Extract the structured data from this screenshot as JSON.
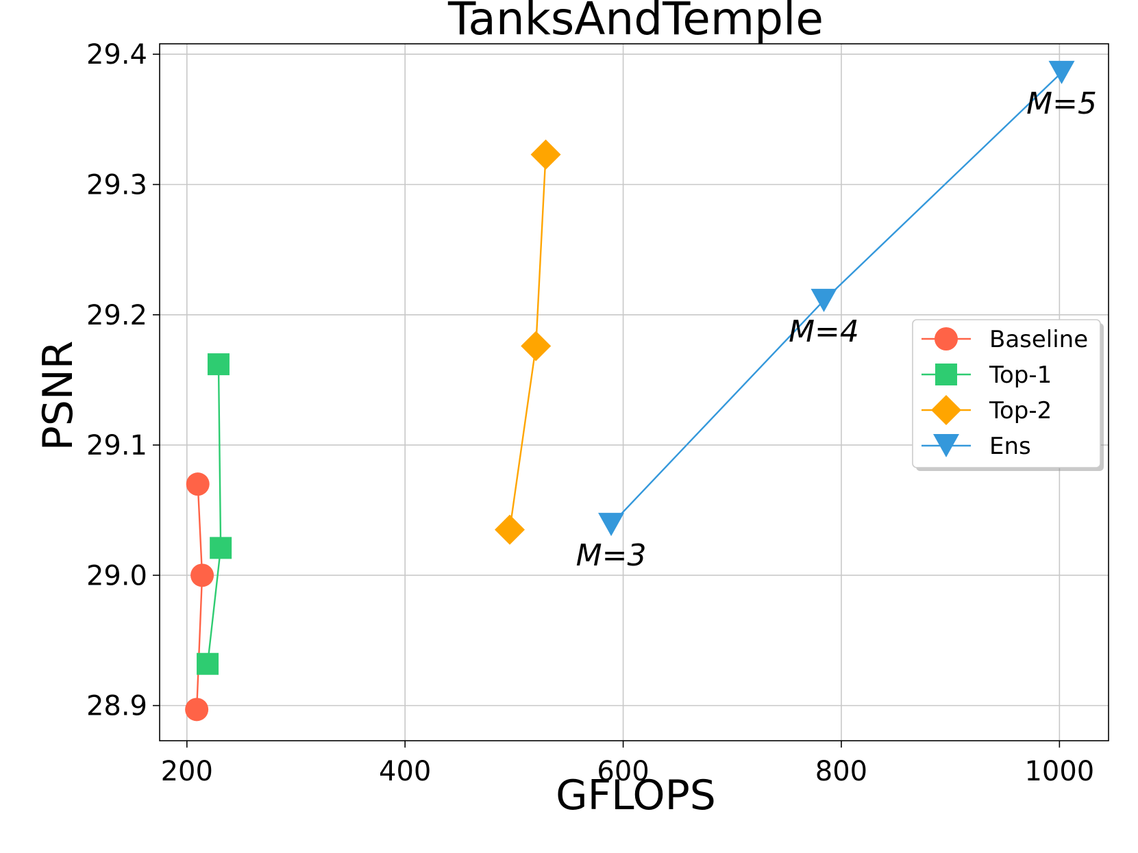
{
  "chart_data": {
    "type": "line",
    "title": "TanksAndTemple",
    "xlabel": "GFLOPS",
    "ylabel": "PSNR",
    "xlim": [
      175,
      1045
    ],
    "ylim": [
      28.873,
      29.408
    ],
    "xticks": [
      200,
      400,
      600,
      800,
      1000
    ],
    "yticks": [
      28.9,
      29.0,
      29.1,
      29.2,
      29.3,
      29.4
    ],
    "xtick_labels": [
      "200",
      "400",
      "600",
      "800",
      "1000"
    ],
    "ytick_labels": [
      "28.9",
      "29.0",
      "29.1",
      "29.2",
      "29.3",
      "29.4"
    ],
    "grid": true,
    "legend_position": "center-right",
    "series": [
      {
        "name": "Baseline",
        "color": "#ff6347",
        "marker": "circle",
        "x": [
          209,
          214,
          210
        ],
        "y": [
          28.897,
          29.0,
          29.07
        ]
      },
      {
        "name": "Top-1",
        "color": "#2ecc71",
        "marker": "square",
        "x": [
          219,
          231,
          229
        ],
        "y": [
          28.932,
          29.021,
          29.162
        ]
      },
      {
        "name": "Top-2",
        "color": "#ffa500",
        "marker": "diamond",
        "x": [
          496,
          520,
          529
        ],
        "y": [
          29.035,
          29.176,
          29.323
        ]
      },
      {
        "name": "Ens",
        "color": "#3498db",
        "marker": "triangle-down",
        "x": [
          589,
          784,
          1002
        ],
        "y": [
          29.039,
          29.211,
          29.386
        ]
      }
    ],
    "annotations": [
      {
        "text": "M=3",
        "x": 589,
        "y": 29.039
      },
      {
        "text": "M=4",
        "x": 784,
        "y": 29.211
      },
      {
        "text": "M=5",
        "x": 1002,
        "y": 29.386
      }
    ]
  }
}
